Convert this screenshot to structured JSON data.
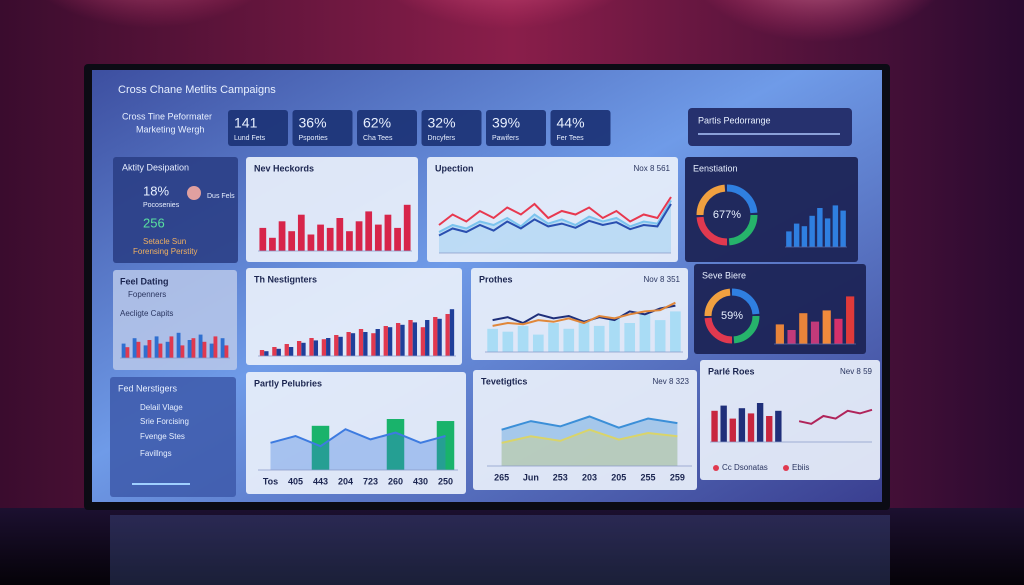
{
  "header": {
    "title": "Cross Chane Metlits Campaigns",
    "subtitle_1": "Cross Tine Peformater",
    "subtitle_2": "Marketing Wergh",
    "kpis": [
      {
        "value": "141",
        "label": "Lund Fets"
      },
      {
        "value": "36%",
        "label": "Psporties"
      },
      {
        "value": "62%",
        "label": "Cha Tees"
      },
      {
        "value": "32%",
        "label": "Dncyfers"
      },
      {
        "value": "39%",
        "label": "Pawifers"
      },
      {
        "value": "44%",
        "label": "Fer Tees"
      }
    ],
    "right_box": "Partis Pedorrange"
  },
  "sidebar": {
    "activity": {
      "title": "Aktity Desipation",
      "stat_1": "18%",
      "stat_1_label": "Pocosenies",
      "side_label": "Dus Fels",
      "stat_2": "256",
      "line_1": "Setacle Sun",
      "line_2": "Forensing Perstity"
    },
    "dating": {
      "title": "Feel Dating",
      "subtitle": "Fopenners",
      "chart_title": "Aecligte Capits",
      "chart": {
        "type": "bar",
        "ylim": [
          0,
          100
        ],
        "bars": [
          {
            "color": "#2f6fd0",
            "values": [
              40,
              55,
              35,
              60,
              45,
              70,
              50,
              65,
              40,
              55
            ]
          },
          {
            "color": "#e0394f",
            "values": [
              30,
              45,
              50,
              40,
              60,
              35,
              55,
              45,
              60,
              35
            ]
          }
        ]
      }
    },
    "navigation": {
      "title": "Fed Nerstigers",
      "items": [
        "Delail Vlage",
        "Srie Forcising",
        "Fvenge Stes",
        "Favillngs"
      ]
    }
  },
  "panels": [
    {
      "title": "Nev Heckords",
      "chart": {
        "type": "bar",
        "ylim": [
          0,
          100
        ],
        "bars": [
          {
            "color": "#d7254a",
            "values": [
              35,
              20,
              45,
              30,
              55,
              25,
              40,
              35,
              50,
              30,
              45,
              60,
              40,
              55,
              35,
              70
            ]
          }
        ]
      }
    },
    {
      "title": "Upection",
      "date": "Nox 8 561",
      "chart": {
        "type": "line",
        "ylim": [
          0,
          100
        ],
        "lines": [
          {
            "color": "#7cc4ee",
            "fill": true,
            "values": [
              30,
              40,
              35,
              45,
              40,
              50,
              38,
              55,
              42,
              48,
              40,
              52,
              45,
              50,
              38,
              45,
              42,
              75
            ]
          },
          {
            "color": "#e8384f",
            "values": [
              40,
              55,
              45,
              60,
              50,
              65,
              55,
              70,
              50,
              60,
              55,
              65,
              50,
              60,
              45,
              55,
              50,
              80
            ]
          },
          {
            "color": "#2a4fb0",
            "values": [
              25,
              35,
              30,
              40,
              32,
              45,
              35,
              48,
              38,
              42,
              36,
              46,
              40,
              44,
              34,
              40,
              38,
              70
            ]
          }
        ]
      }
    },
    {
      "title": "Eenstiation",
      "center_label": "677%",
      "chart": {
        "type": "bar",
        "ylim": [
          0,
          100
        ],
        "bars": [
          {
            "color": "#2f7fe0",
            "values": [
              30,
              45,
              40,
              60,
              75,
              55,
              80,
              70
            ]
          }
        ]
      }
    },
    {
      "title": "Th Nestignters",
      "chart": {
        "type": "bar",
        "ylim": [
          0,
          100
        ],
        "bars": [
          {
            "color": "#e0394f",
            "values": [
              10,
              15,
              20,
              25,
              30,
              28,
              35,
              40,
              45,
              38,
              50,
              55,
              60,
              48,
              65,
              70
            ]
          },
          {
            "color": "#1f3f9a",
            "values": [
              8,
              12,
              15,
              22,
              26,
              30,
              32,
              38,
              40,
              45,
              48,
              52,
              56,
              60,
              62,
              78
            ]
          }
        ]
      }
    },
    {
      "title": "Prothes",
      "date": "Nov 8 351",
      "chart": {
        "type": "mixed",
        "ylim": [
          0,
          100
        ],
        "bars": [
          {
            "color": "#a9dcf5",
            "values": [
              40,
              35,
              45,
              30,
              50,
              40,
              55,
              45,
              60,
              50,
              65,
              55,
              70
            ]
          }
        ],
        "lines": [
          {
            "color": "#1f2f7a",
            "values": [
              55,
              60,
              50,
              65,
              58,
              62,
              52,
              60,
              55,
              70,
              65,
              75,
              80
            ]
          },
          {
            "color": "#e0873a",
            "values": [
              45,
              50,
              48,
              55,
              52,
              58,
              50,
              62,
              58,
              65,
              70,
              72,
              85
            ]
          }
        ]
      }
    },
    {
      "title": "Seve Biere",
      "center_label": "59%",
      "chart": {
        "type": "bar",
        "ylim": [
          0,
          100
        ],
        "bars": [
          {
            "colors": [
              "#e8843a",
              "#c23a7a",
              "#e8843a",
              "#c23a7a",
              "#f08a3c",
              "#d6306b",
              "#e03a3a"
            ],
            "values": [
              35,
              25,
              55,
              40,
              60,
              45,
              85
            ]
          }
        ]
      }
    },
    {
      "title": "Partly Pelubries",
      "chart": {
        "type": "mixed",
        "ylim": [
          0,
          100
        ],
        "categories": [
          "Tos",
          "405",
          "443",
          "204",
          "723",
          "260",
          "430",
          "250"
        ],
        "bars": [
          {
            "color": "#19b36b",
            "values": [
              null,
              null,
              65,
              null,
              null,
              75,
              null,
              72
            ]
          }
        ],
        "lines": [
          {
            "color": "#3d7be0",
            "fill": true,
            "values": [
              40,
              50,
              35,
              60,
              45,
              55,
              40,
              50
            ]
          }
        ]
      }
    },
    {
      "title": "Tevetigtics",
      "date": "Nev 8 323",
      "chart": {
        "type": "area",
        "ylim": [
          0,
          100
        ],
        "categories": [
          "265",
          "Jun",
          "253",
          "203",
          "205",
          "255",
          "259"
        ],
        "lines": [
          {
            "color": "#3b8fd8",
            "fill": true,
            "values": [
              55,
              68,
              60,
              75,
              58,
              72,
              65
            ]
          },
          {
            "color": "#d9d46a",
            "fill": true,
            "values": [
              35,
              45,
              38,
              55,
              40,
              50,
              45
            ]
          }
        ]
      }
    },
    {
      "title": "Parlé Roes",
      "date": "Nev 8 59",
      "chart": {
        "type": "mixed",
        "split": true,
        "ylim": [
          0,
          100
        ],
        "bars": [
          {
            "colors": [
              "#c8263f",
              "#1f2f7a",
              "#c8263f",
              "#1f2f7a",
              "#c8263f",
              "#1f2f7a",
              "#c8263f",
              "#1f2f7a"
            ],
            "values": [
              60,
              70,
              45,
              65,
              55,
              75,
              50,
              60
            ]
          }
        ],
        "lines": [
          {
            "color": "#b0245a",
            "values": [
              40,
              35,
              50,
              45,
              60,
              55,
              62
            ]
          }
        ]
      },
      "notes": [
        "Cc Dsonatas",
        "Ebiis"
      ]
    }
  ]
}
